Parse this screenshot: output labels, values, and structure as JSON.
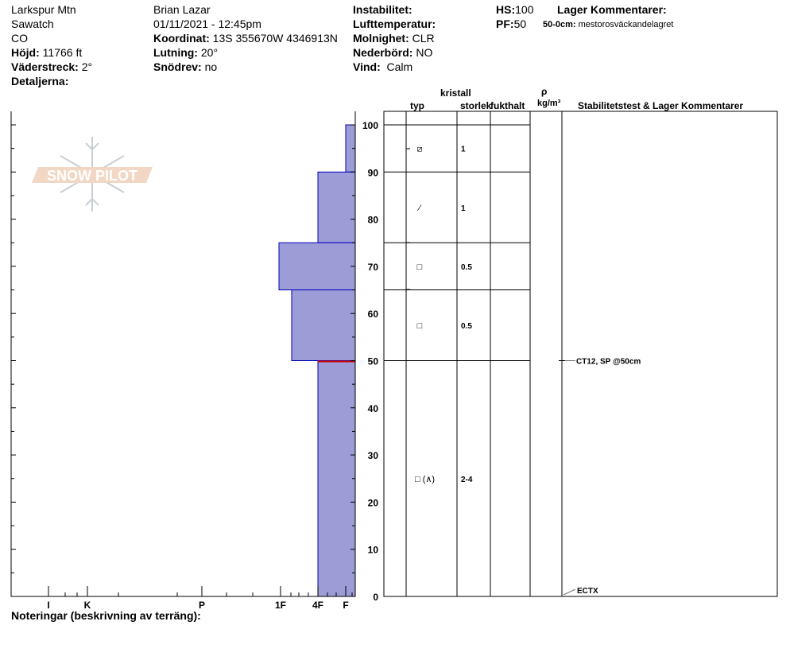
{
  "header": {
    "location": "Larkspur Mtn",
    "range": "Sawatch",
    "state": "CO",
    "elevation_label": "Höjd:",
    "elevation": "11766 ft",
    "aspect_label": "Väderstreck:",
    "aspect": "2°",
    "details_label": "Detaljerna:",
    "observer": "Brian Lazar",
    "datetime": "01/11/2021 - 12:45pm",
    "coords_label": "Koordinat:",
    "coords": "13S 355670W 4346913N",
    "slope_label": "Lutning:",
    "slope": "20°",
    "drift_label": "Snödrev:",
    "drift": "no",
    "instability_label": "Instabilitet:",
    "airtemp_label": "Lufttemperatur:",
    "sky_label": "Molnighet:",
    "sky": "CLR",
    "precip_label": "Nederbörd:",
    "precip": "NO",
    "wind_label": "Vind:",
    "wind": "Calm",
    "hs_label": "HS:",
    "hs": "100",
    "pf_label": "PF:",
    "pf": "50",
    "layer_comments_label": "Lager Kommentarer:",
    "layer_comment_range": "50-0cm:",
    "layer_comment": "mestorosväckandelagret"
  },
  "table_headers": {
    "crystal": "kristall",
    "type": "typ",
    "size": "storlek",
    "moisture": "fukthalt",
    "rho": "ρ",
    "density_unit": "kg/m³",
    "stability": "Stabilitetstest & Lager Kommentarer"
  },
  "logo_text": "SNOW PILOT",
  "notes_label": "Noteringar (beskrivning av terräng):",
  "chart_data": {
    "type": "bar",
    "orientation": "horizontal-profile",
    "ylabel": "",
    "ylim": [
      0,
      100
    ],
    "y_ticks": [
      "0",
      "10",
      "20",
      "30",
      "40",
      "50",
      "60",
      "70",
      "80",
      "90",
      "100"
    ],
    "x_ticks": [
      "I",
      "K",
      "P",
      "1F",
      "4F",
      "F"
    ],
    "bar_color": "#9c9cd6",
    "bar_edge_color": "#0000c0",
    "weak_layer_color": "#cc0000",
    "layers": [
      {
        "top": 100,
        "bottom": 90,
        "hardness": "F",
        "type": "⧄",
        "size": "1"
      },
      {
        "top": 90,
        "bottom": 75,
        "hardness": "4F",
        "type": "⁄",
        "size": "1"
      },
      {
        "top": 75,
        "bottom": 65,
        "hardness": "1F",
        "type": "□",
        "size": "0.5"
      },
      {
        "top": 65,
        "bottom": 50,
        "hardness": "1F+",
        "type": "□",
        "size": "0.5"
      },
      {
        "top": 50,
        "bottom": 0,
        "hardness": "4F",
        "type": "□ (∧)",
        "size": "2-4"
      }
    ],
    "weak_layer_depth": 50,
    "tests": [
      {
        "depth": 50,
        "text": "CT12, SP @50cm"
      },
      {
        "depth": 0,
        "text": "ECTX"
      }
    ]
  }
}
